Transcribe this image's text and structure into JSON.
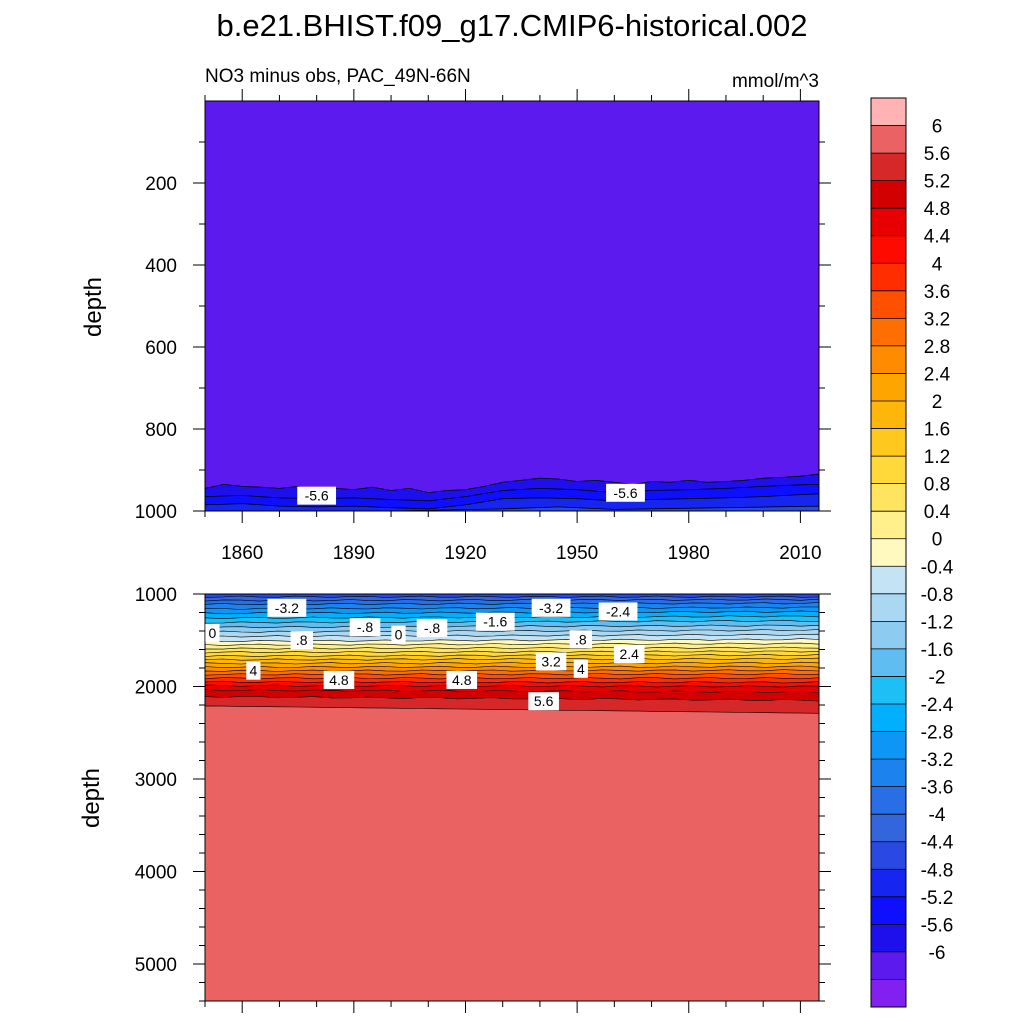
{
  "title": "b.e21.BHIST.f09_g17.CMIP6-historical.002",
  "chart_data": [
    {
      "type": "heatmap",
      "panel": "upper",
      "subtitle_left": "NO3 minus obs, PAC_49N-66N",
      "subtitle_right": "mmol/m^3",
      "ylabel": "depth",
      "xlim": [
        1850,
        2015
      ],
      "ylim": [
        1000,
        0
      ],
      "x_ticks": [
        1860,
        1890,
        1920,
        1950,
        1980,
        2010
      ],
      "y_ticks": [
        200,
        400,
        600,
        800,
        1000
      ],
      "background_level": -6,
      "bands": [
        {
          "level": -5.6,
          "x": [
            1850,
            1855,
            1860,
            1865,
            1870,
            1875,
            1880,
            1885,
            1890,
            1895,
            1900,
            1905,
            1910,
            1915,
            1920,
            1925,
            1930,
            1935,
            1940,
            1945,
            1950,
            1955,
            1960,
            1965,
            1970,
            1975,
            1980,
            1985,
            1990,
            1995,
            2000,
            2005,
            2010,
            2015
          ],
          "depth": [
            945,
            935,
            940,
            942,
            945,
            940,
            950,
            945,
            948,
            942,
            950,
            945,
            955,
            950,
            948,
            940,
            930,
            925,
            920,
            922,
            928,
            925,
            930,
            935,
            928,
            930,
            925,
            930,
            928,
            925,
            920,
            918,
            915,
            910
          ]
        },
        {
          "level": -5.2,
          "x": [
            1850,
            1860,
            1870,
            1880,
            1890,
            1900,
            1910,
            1920,
            1930,
            1940,
            1950,
            1960,
            1970,
            1980,
            1990,
            2000,
            2010,
            2015
          ],
          "depth": [
            965,
            962,
            968,
            970,
            968,
            972,
            975,
            965,
            950,
            945,
            948,
            955,
            950,
            948,
            945,
            940,
            936,
            935
          ]
        },
        {
          "level": -4.8,
          "x": [
            1850,
            1860,
            1870,
            1880,
            1890,
            1900,
            1910,
            1920,
            1930,
            1940,
            1950,
            1960,
            1970,
            1980,
            1990,
            2000,
            2010,
            2015
          ],
          "depth": [
            985,
            982,
            988,
            990,
            988,
            992,
            995,
            985,
            970,
            968,
            970,
            975,
            972,
            970,
            968,
            965,
            960,
            958
          ]
        },
        {
          "level": -4.4,
          "x": [
            1850,
            1900,
            1930,
            1945,
            1960,
            1990,
            2015
          ],
          "depth": [
            1000,
            1000,
            995,
            990,
            996,
            992,
            988
          ]
        }
      ],
      "contour_labels": [
        {
          "text": "-5.6",
          "x": 1880,
          "depth": 965
        },
        {
          "text": "-5.6",
          "x": 1963,
          "depth": 958
        }
      ]
    },
    {
      "type": "heatmap",
      "panel": "lower",
      "ylabel": "depth",
      "xlim": [
        1850,
        2015
      ],
      "ylim": [
        1000,
        5400
      ],
      "y_ticks": [
        1000,
        2000,
        3000,
        4000,
        5000
      ],
      "background_level": 6,
      "levels_top_depth": [
        {
          "level": -4.4,
          "d0": 1000,
          "d1": 1000
        },
        {
          "level": -4.0,
          "d0": 1030,
          "d1": 1030
        },
        {
          "level": -3.6,
          "d0": 1070,
          "d1": 1060
        },
        {
          "level": -3.2,
          "d0": 1110,
          "d1": 1100
        },
        {
          "level": -2.8,
          "d0": 1160,
          "d1": 1145
        },
        {
          "level": -2.4,
          "d0": 1210,
          "d1": 1190
        },
        {
          "level": -2.0,
          "d0": 1260,
          "d1": 1240
        },
        {
          "level": -1.6,
          "d0": 1310,
          "d1": 1290
        },
        {
          "level": -1.2,
          "d0": 1360,
          "d1": 1340
        },
        {
          "level": -0.8,
          "d0": 1410,
          "d1": 1390
        },
        {
          "level": -0.4,
          "d0": 1460,
          "d1": 1440
        },
        {
          "level": 0,
          "d0": 1510,
          "d1": 1490
        },
        {
          "level": 0.4,
          "d0": 1550,
          "d1": 1535
        },
        {
          "level": 0.8,
          "d0": 1590,
          "d1": 1580
        },
        {
          "level": 1.2,
          "d0": 1630,
          "d1": 1620
        },
        {
          "level": 1.6,
          "d0": 1670,
          "d1": 1660
        },
        {
          "level": 2.0,
          "d0": 1710,
          "d1": 1700
        },
        {
          "level": 2.4,
          "d0": 1750,
          "d1": 1745
        },
        {
          "level": 2.8,
          "d0": 1790,
          "d1": 1785
        },
        {
          "level": 3.2,
          "d0": 1830,
          "d1": 1825
        },
        {
          "level": 3.6,
          "d0": 1870,
          "d1": 1865
        },
        {
          "level": 4.0,
          "d0": 1910,
          "d1": 1910
        },
        {
          "level": 4.4,
          "d0": 1950,
          "d1": 1955
        },
        {
          "level": 4.8,
          "d0": 1990,
          "d1": 2000
        },
        {
          "level": 5.2,
          "d0": 2040,
          "d1": 2060
        },
        {
          "level": 5.6,
          "d0": 2110,
          "d1": 2150
        },
        {
          "level": 6.0,
          "d0": 2210,
          "d1": 2290
        }
      ],
      "contour_labels": [
        {
          "text": "-3.2",
          "x": 1872,
          "depth": 1160
        },
        {
          "text": "0",
          "x": 1852,
          "depth": 1430
        },
        {
          "text": ".8",
          "x": 1876,
          "depth": 1510
        },
        {
          "text": "-.8",
          "x": 1893,
          "depth": 1370
        },
        {
          "text": "0",
          "x": 1902,
          "depth": 1450
        },
        {
          "text": "-.8",
          "x": 1911,
          "depth": 1380
        },
        {
          "text": "-1.6",
          "x": 1928,
          "depth": 1310
        },
        {
          "text": "-3.2",
          "x": 1943,
          "depth": 1160
        },
        {
          "text": "-2.4",
          "x": 1961,
          "depth": 1200
        },
        {
          "text": ".8",
          "x": 1951,
          "depth": 1500
        },
        {
          "text": "3.2",
          "x": 1943,
          "depth": 1740
        },
        {
          "text": "2.4",
          "x": 1964,
          "depth": 1660
        },
        {
          "text": "4",
          "x": 1863,
          "depth": 1840
        },
        {
          "text": "4",
          "x": 1951,
          "depth": 1820
        },
        {
          "text": "4.8",
          "x": 1886,
          "depth": 1940
        },
        {
          "text": "4.8",
          "x": 1919,
          "depth": 1940
        },
        {
          "text": "5.6",
          "x": 1941,
          "depth": 2170
        }
      ]
    }
  ],
  "x_tick_labels": [
    "1860",
    "1890",
    "1920",
    "1950",
    "1980",
    "2010"
  ],
  "upper_y_tick_labels": [
    "200",
    "400",
    "600",
    "800",
    "1000"
  ],
  "lower_y_tick_labels": [
    "1000",
    "2000",
    "3000",
    "4000",
    "5000"
  ],
  "colorbar": {
    "labels": [
      "6",
      "5.6",
      "5.2",
      "4.8",
      "4.4",
      "4",
      "3.6",
      "3.2",
      "2.8",
      "2.4",
      "2",
      "1.6",
      "1.2",
      "0.8",
      "0.4",
      "0",
      "-0.4",
      "-0.8",
      "-1.2",
      "-1.6",
      "-2",
      "-2.4",
      "-2.8",
      "-3.2",
      "-3.6",
      "-4",
      "-4.4",
      "-4.8",
      "-5.2",
      "-5.6",
      "-6"
    ],
    "colors": [
      "#ffb3b3",
      "#eb6262",
      "#d62828",
      "#d20000",
      "#e80000",
      "#ff0a00",
      "#ff2d00",
      "#ff5000",
      "#ff6e00",
      "#ff8c00",
      "#ffa500",
      "#ffb60a",
      "#ffc81e",
      "#ffd93a",
      "#ffe460",
      "#fff08c",
      "#fff9c0",
      "#c4e3f5",
      "#aad8f2",
      "#8ecbf0",
      "#5fbdf2",
      "#1ebff5",
      "#00b0ff",
      "#0d96f5",
      "#1c83ee",
      "#286ee6",
      "#3366dd",
      "#2a49e3",
      "#1626f0",
      "#0f0fff",
      "#1e10ec",
      "#5c1aee",
      "#8220f0"
    ]
  }
}
